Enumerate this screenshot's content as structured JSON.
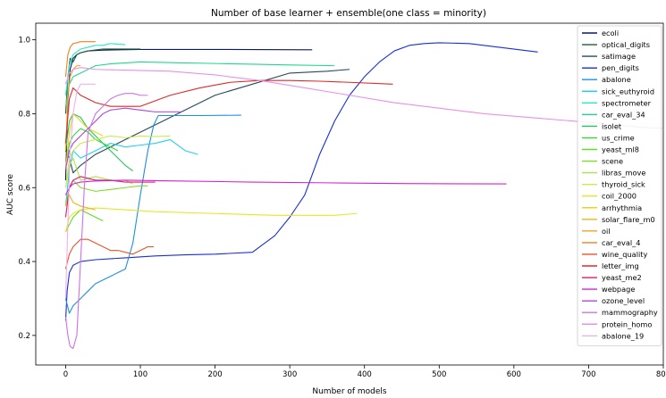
{
  "chart_data": {
    "type": "line",
    "title": "Number of base learner + ensemble(one class = minority)",
    "xlabel": "Number of models",
    "ylabel": "AUC score",
    "xlim": [
      -40,
      800
    ],
    "ylim": [
      0.12,
      1.045
    ],
    "xticks": [
      0,
      100,
      200,
      300,
      400,
      500,
      600,
      700,
      800
    ],
    "yticks": [
      0.2,
      0.4,
      0.6,
      0.8,
      1.0
    ],
    "xtick_labels": [
      "0",
      "100",
      "200",
      "300",
      "400",
      "500",
      "600",
      "700",
      "800"
    ],
    "ytick_labels": [
      "0.2",
      "0.4",
      "0.6",
      "0.8",
      "1.0"
    ],
    "grid": false,
    "legend_position": "top-right",
    "series": [
      {
        "name": "ecoli",
        "color": "#0d1a5e",
        "x": [
          0,
          3,
          6,
          10,
          15,
          20,
          30,
          50,
          100,
          200,
          330
        ],
        "y": [
          0.62,
          0.84,
          0.92,
          0.95,
          0.96,
          0.965,
          0.97,
          0.972,
          0.974,
          0.974,
          0.973
        ]
      },
      {
        "name": "optical_digits",
        "color": "#1a5e3a",
        "x": [
          0,
          3,
          6,
          10,
          15,
          20,
          30,
          50,
          100
        ],
        "y": [
          0.8,
          0.9,
          0.95,
          0.94,
          0.96,
          0.965,
          0.97,
          0.975,
          0.975
        ]
      },
      {
        "name": "satimage",
        "color": "#24495e",
        "x": [
          0,
          5,
          10,
          20,
          40,
          60,
          80,
          100,
          130,
          160,
          200,
          250,
          300,
          350,
          380
        ],
        "y": [
          0.7,
          0.68,
          0.64,
          0.66,
          0.69,
          0.71,
          0.73,
          0.75,
          0.78,
          0.81,
          0.85,
          0.88,
          0.91,
          0.915,
          0.92
        ]
      },
      {
        "name": "pen_digits",
        "color": "#1a2ed4",
        "x": [
          0,
          2,
          5,
          10,
          20,
          40,
          80,
          120,
          160,
          200,
          250,
          280,
          300,
          320,
          340,
          360,
          380,
          400,
          420,
          440,
          460,
          480,
          500,
          540,
          580,
          632
        ],
        "y": [
          0.24,
          0.32,
          0.37,
          0.39,
          0.4,
          0.405,
          0.41,
          0.415,
          0.418,
          0.42,
          0.425,
          0.47,
          0.52,
          0.58,
          0.69,
          0.78,
          0.85,
          0.9,
          0.94,
          0.97,
          0.985,
          0.99,
          0.992,
          0.99,
          0.98,
          0.967
        ]
      },
      {
        "name": "abalone",
        "color": "#1f8fe0",
        "x": [
          0,
          5,
          10,
          20,
          30,
          40,
          50,
          60,
          70,
          80,
          90,
          100,
          110,
          118,
          124,
          140,
          180,
          235
        ],
        "y": [
          0.3,
          0.26,
          0.28,
          0.3,
          0.32,
          0.34,
          0.35,
          0.36,
          0.37,
          0.38,
          0.45,
          0.58,
          0.7,
          0.77,
          0.795,
          0.795,
          0.795,
          0.796
        ]
      },
      {
        "name": "sick_euthyroid",
        "color": "#22d0f0",
        "x": [
          0,
          5,
          10,
          20,
          40,
          60,
          80,
          100,
          120,
          140,
          160,
          177
        ],
        "y": [
          0.55,
          0.65,
          0.7,
          0.68,
          0.7,
          0.72,
          0.71,
          0.715,
          0.72,
          0.73,
          0.7,
          0.69
        ]
      },
      {
        "name": "spectrometer",
        "color": "#28e6c8",
        "x": [
          0,
          5,
          10,
          20,
          30,
          40,
          50,
          60,
          70,
          80
        ],
        "y": [
          0.85,
          0.93,
          0.96,
          0.975,
          0.98,
          0.985,
          0.985,
          0.99,
          0.988,
          0.987
        ]
      },
      {
        "name": "car_eval_34",
        "color": "#20d890",
        "x": [
          0,
          5,
          10,
          20,
          40,
          60,
          100,
          150,
          200,
          250,
          300,
          360
        ],
        "y": [
          0.82,
          0.88,
          0.9,
          0.91,
          0.93,
          0.935,
          0.94,
          0.938,
          0.936,
          0.934,
          0.932,
          0.93
        ]
      },
      {
        "name": "isolet",
        "color": "#1ec85a",
        "x": [
          0,
          5,
          10,
          20,
          30,
          40,
          50,
          60,
          70,
          80,
          90
        ],
        "y": [
          0.7,
          0.78,
          0.8,
          0.79,
          0.76,
          0.74,
          0.72,
          0.7,
          0.68,
          0.66,
          0.645
        ]
      },
      {
        "name": "us_crime",
        "color": "#38d838",
        "x": [
          0,
          5,
          10,
          20,
          30,
          40,
          50,
          60,
          70
        ],
        "y": [
          0.65,
          0.72,
          0.74,
          0.76,
          0.75,
          0.73,
          0.72,
          0.71,
          0.7
        ]
      },
      {
        "name": "yeast_ml8",
        "color": "#5ee020",
        "x": [
          0,
          5,
          10,
          20,
          30,
          40,
          50
        ],
        "y": [
          0.48,
          0.5,
          0.52,
          0.54,
          0.53,
          0.52,
          0.51
        ]
      },
      {
        "name": "scene",
        "color": "#80dc28",
        "x": [
          0,
          5,
          10,
          20,
          40,
          60,
          80,
          100,
          110
        ],
        "y": [
          0.55,
          0.6,
          0.62,
          0.6,
          0.59,
          0.595,
          0.6,
          0.605,
          0.605
        ]
      },
      {
        "name": "libras_move",
        "color": "#a8e840",
        "x": [
          0,
          5,
          10,
          20,
          40,
          60,
          80,
          90
        ],
        "y": [
          0.6,
          0.66,
          0.68,
          0.62,
          0.63,
          0.62,
          0.62,
          0.61
        ]
      },
      {
        "name": "thyroid_sick",
        "color": "#d0e850",
        "x": [
          0,
          5,
          10,
          20,
          40,
          60,
          80,
          100,
          120,
          140
        ],
        "y": [
          0.6,
          0.68,
          0.7,
          0.72,
          0.73,
          0.74,
          0.735,
          0.74,
          0.738,
          0.74
        ]
      },
      {
        "name": "coil_2000",
        "color": "#e6e628",
        "x": [
          0,
          5,
          10,
          20,
          40,
          80,
          120,
          200,
          280,
          360,
          390
        ],
        "y": [
          0.48,
          0.52,
          0.53,
          0.54,
          0.545,
          0.54,
          0.535,
          0.53,
          0.525,
          0.525,
          0.53
        ]
      },
      {
        "name": "arrhythmia",
        "color": "#f0d020",
        "x": [
          0,
          5,
          10,
          20,
          30,
          40,
          50
        ],
        "y": [
          0.65,
          0.75,
          0.8,
          0.78,
          0.76,
          0.75,
          0.74
        ]
      },
      {
        "name": "solar_flare_m0",
        "color": "#f0b418",
        "x": [
          0,
          5,
          10,
          20,
          30,
          40
        ],
        "y": [
          0.55,
          0.58,
          0.56,
          0.55,
          0.545,
          0.54
        ]
      },
      {
        "name": "oil",
        "color": "#f0a020",
        "x": [
          0,
          3,
          6,
          10,
          15,
          20
        ],
        "y": [
          0.7,
          0.85,
          0.9,
          0.92,
          0.93,
          0.93
        ]
      },
      {
        "name": "car_eval_4",
        "color": "#f08020",
        "x": [
          0,
          3,
          6,
          10,
          15,
          20,
          25,
          30,
          35,
          40
        ],
        "y": [
          0.9,
          0.96,
          0.98,
          0.99,
          0.992,
          0.995,
          0.995,
          0.995,
          0.995,
          0.995
        ]
      },
      {
        "name": "wine_quality",
        "color": "#f05028",
        "x": [
          0,
          5,
          10,
          20,
          30,
          40,
          50,
          60,
          70,
          80,
          90,
          100,
          110,
          118
        ],
        "y": [
          0.38,
          0.42,
          0.44,
          0.46,
          0.46,
          0.45,
          0.44,
          0.43,
          0.43,
          0.425,
          0.42,
          0.43,
          0.44,
          0.44
        ]
      },
      {
        "name": "letter_img",
        "color": "#e02828",
        "x": [
          0,
          5,
          10,
          20,
          30,
          40,
          60,
          80,
          100,
          140,
          180,
          220,
          260,
          300,
          340,
          380,
          438
        ],
        "y": [
          0.72,
          0.84,
          0.87,
          0.85,
          0.84,
          0.83,
          0.82,
          0.82,
          0.82,
          0.85,
          0.87,
          0.885,
          0.89,
          0.89,
          0.888,
          0.885,
          0.88
        ]
      },
      {
        "name": "yeast_me2",
        "color": "#e01870",
        "x": [
          0,
          5,
          10,
          20,
          40,
          60,
          80,
          100,
          120
        ],
        "y": [
          0.52,
          0.6,
          0.62,
          0.63,
          0.62,
          0.62,
          0.615,
          0.615,
          0.615
        ]
      },
      {
        "name": "webpage",
        "color": "#d820d8",
        "x": [
          0,
          5,
          10,
          20,
          40,
          80,
          150,
          250,
          350,
          450,
          590
        ],
        "y": [
          0.58,
          0.6,
          0.61,
          0.615,
          0.618,
          0.62,
          0.618,
          0.615,
          0.613,
          0.611,
          0.61
        ]
      },
      {
        "name": "ozone_level",
        "color": "#b440e0",
        "x": [
          0,
          5,
          10,
          20,
          30,
          40,
          50,
          60,
          80,
          100,
          120,
          140,
          155
        ],
        "y": [
          0.65,
          0.7,
          0.72,
          0.74,
          0.76,
          0.78,
          0.8,
          0.81,
          0.815,
          0.81,
          0.805,
          0.805,
          0.805
        ]
      },
      {
        "name": "mammography",
        "color": "#d070e8",
        "x": [
          0,
          3,
          6,
          10,
          15,
          20,
          25,
          30,
          40,
          50,
          60,
          70,
          80,
          90,
          100,
          110
        ],
        "y": [
          0.25,
          0.2,
          0.17,
          0.165,
          0.2,
          0.4,
          0.6,
          0.75,
          0.8,
          0.82,
          0.84,
          0.85,
          0.855,
          0.855,
          0.85,
          0.85
        ]
      },
      {
        "name": "protein_homo",
        "color": "#e890e8",
        "x": [
          0,
          5,
          10,
          20,
          40,
          80,
          140,
          200,
          260,
          320,
          380,
          440,
          500,
          560,
          620,
          680,
          760,
          800
        ],
        "y": [
          0.88,
          0.91,
          0.92,
          0.925,
          0.92,
          0.918,
          0.915,
          0.905,
          0.89,
          0.87,
          0.85,
          0.83,
          0.815,
          0.8,
          0.79,
          0.78,
          0.765,
          0.76
        ]
      },
      {
        "name": "abalone_19",
        "color": "#f0b0f0",
        "x": [
          0,
          3,
          6,
          10,
          15,
          20,
          30,
          40
        ],
        "y": [
          0.3,
          0.5,
          0.7,
          0.8,
          0.86,
          0.88,
          0.88,
          0.88
        ]
      }
    ]
  }
}
